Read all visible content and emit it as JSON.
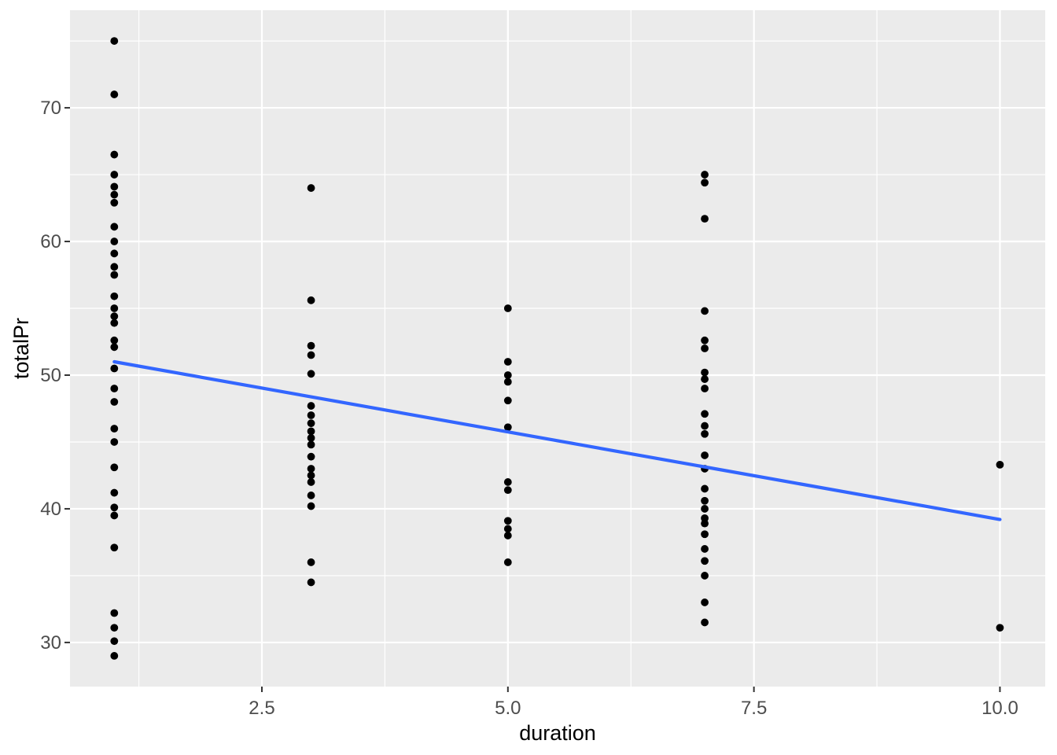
{
  "chart_data": {
    "type": "scatter",
    "title": "",
    "xlabel": "duration",
    "ylabel": "totalPr",
    "xlim": [
      0.55,
      10.46
    ],
    "ylim": [
      26.7,
      77.3
    ],
    "grid": true,
    "legend_position": "none",
    "x_major_ticks": {
      "values": [
        2.5,
        5.0,
        7.5,
        10.0
      ],
      "labels": [
        "2.5",
        "5.0",
        "7.5",
        "10.0"
      ]
    },
    "y_major_ticks": {
      "values": [
        30,
        40,
        50,
        60,
        70
      ],
      "labels": [
        "30",
        "40",
        "50",
        "60",
        "70"
      ]
    },
    "x_minor_ticks": [
      1.25,
      3.75,
      6.25,
      8.75
    ],
    "y_minor_ticks": [
      35,
      45,
      55,
      65,
      75
    ],
    "colors": {
      "panel_background": "#EBEBEB",
      "gridline": "#FFFFFF",
      "point": "#000000",
      "smooth_line": "#3366FF",
      "tick_label": "#4D4D4D",
      "axis_title": "#000000",
      "tick_mark": "#333333"
    },
    "smooth_line": {
      "name": "linear-fit",
      "points": [
        [
          1.0,
          51.0
        ],
        [
          10.0,
          39.2
        ]
      ]
    },
    "series": [
      {
        "name": "observations",
        "points": [
          [
            1,
            75.0
          ],
          [
            1,
            71.0
          ],
          [
            1,
            66.5
          ],
          [
            1,
            65.0
          ],
          [
            1,
            64.1
          ],
          [
            1,
            63.5
          ],
          [
            1,
            62.9
          ],
          [
            1,
            61.1
          ],
          [
            1,
            60.0
          ],
          [
            1,
            59.1
          ],
          [
            1,
            58.1
          ],
          [
            1,
            57.5
          ],
          [
            1,
            55.9
          ],
          [
            1,
            55.0
          ],
          [
            1,
            54.4
          ],
          [
            1,
            53.9
          ],
          [
            1,
            52.6
          ],
          [
            1,
            52.1
          ],
          [
            1,
            50.5
          ],
          [
            1,
            49.0
          ],
          [
            1,
            48.0
          ],
          [
            1,
            46.0
          ],
          [
            1,
            45.0
          ],
          [
            1,
            43.1
          ],
          [
            1,
            41.2
          ],
          [
            1,
            40.1
          ],
          [
            1,
            39.5
          ],
          [
            1,
            37.1
          ],
          [
            1,
            32.2
          ],
          [
            1,
            31.1
          ],
          [
            1,
            30.1
          ],
          [
            1,
            29.0
          ],
          [
            3,
            64.0
          ],
          [
            3,
            55.6
          ],
          [
            3,
            52.2
          ],
          [
            3,
            51.5
          ],
          [
            3,
            50.1
          ],
          [
            3,
            47.7
          ],
          [
            3,
            47.0
          ],
          [
            3,
            46.4
          ],
          [
            3,
            45.8
          ],
          [
            3,
            45.3
          ],
          [
            3,
            44.8
          ],
          [
            3,
            43.9
          ],
          [
            3,
            43.0
          ],
          [
            3,
            42.5
          ],
          [
            3,
            42.0
          ],
          [
            3,
            41.0
          ],
          [
            3,
            40.2
          ],
          [
            3,
            36.0
          ],
          [
            3,
            34.5
          ],
          [
            5,
            55.0
          ],
          [
            5,
            51.0
          ],
          [
            5,
            50.0
          ],
          [
            5,
            49.5
          ],
          [
            5,
            48.1
          ],
          [
            5,
            46.1
          ],
          [
            5,
            42.0
          ],
          [
            5,
            41.4
          ],
          [
            5,
            39.1
          ],
          [
            5,
            38.5
          ],
          [
            5,
            38.0
          ],
          [
            5,
            36.0
          ],
          [
            7,
            65.0
          ],
          [
            7,
            64.4
          ],
          [
            7,
            61.7
          ],
          [
            7,
            54.8
          ],
          [
            7,
            52.6
          ],
          [
            7,
            52.0
          ],
          [
            7,
            50.2
          ],
          [
            7,
            49.7
          ],
          [
            7,
            49.0
          ],
          [
            7,
            47.1
          ],
          [
            7,
            46.2
          ],
          [
            7,
            45.6
          ],
          [
            7,
            44.0
          ],
          [
            7,
            43.0
          ],
          [
            7,
            41.5
          ],
          [
            7,
            40.6
          ],
          [
            7,
            40.0
          ],
          [
            7,
            39.3
          ],
          [
            7,
            38.9
          ],
          [
            7,
            38.1
          ],
          [
            7,
            37.0
          ],
          [
            7,
            36.1
          ],
          [
            7,
            35.0
          ],
          [
            7,
            33.0
          ],
          [
            7,
            31.5
          ],
          [
            10,
            43.3
          ],
          [
            10,
            31.1
          ]
        ]
      }
    ]
  }
}
